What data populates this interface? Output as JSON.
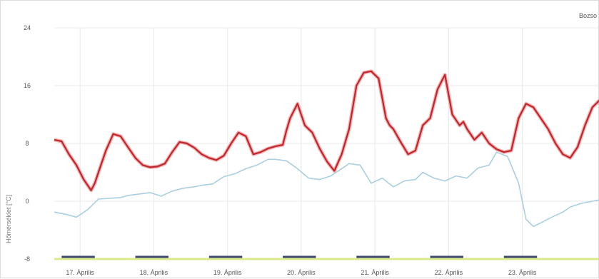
{
  "chart_data": {
    "type": "line",
    "title": "",
    "corner_label": "Bozso",
    "ylabel": "Hőmérséklet [°C]",
    "ylim": [
      -8,
      24
    ],
    "xlim": [
      0,
      7.4
    ],
    "yticks": [
      "24",
      "16",
      "8",
      "0",
      "-8"
    ],
    "ytick_values": [
      24,
      16,
      8,
      0,
      -8
    ],
    "categories": [
      "17. Április",
      "18. Április",
      "19. Április",
      "20. Április",
      "21. Április",
      "22. Április",
      "23. Április"
    ],
    "category_positions": [
      0.35,
      1.35,
      2.35,
      3.35,
      4.35,
      5.35,
      6.35
    ],
    "grid": true,
    "colors": {
      "red": "#c0272d",
      "red_band": "#f4a7a9",
      "blue": "#a9cfe0",
      "night": "#3c4b6e",
      "day": "#dbe98d"
    },
    "night_bars": [
      [
        0.1,
        0.55
      ],
      [
        1.1,
        1.55
      ],
      [
        2.1,
        2.55
      ],
      [
        3.1,
        3.55
      ],
      [
        4.1,
        4.55
      ],
      [
        5.1,
        5.55
      ],
      [
        6.1,
        6.55
      ]
    ],
    "series": [
      {
        "color": "#c0272d",
        "x": [
          0.0,
          0.1,
          0.2,
          0.3,
          0.4,
          0.5,
          0.55,
          0.6,
          0.7,
          0.8,
          0.9,
          1.0,
          1.1,
          1.2,
          1.3,
          1.4,
          1.5,
          1.6,
          1.7,
          1.8,
          1.9,
          2.0,
          2.1,
          2.2,
          2.3,
          2.4,
          2.5,
          2.6,
          2.7,
          2.8,
          2.9,
          3.0,
          3.1,
          3.15,
          3.2,
          3.3,
          3.4,
          3.5,
          3.6,
          3.7,
          3.8,
          3.9,
          4.0,
          4.1,
          4.2,
          4.3,
          4.4,
          4.5,
          4.55,
          4.6,
          4.7,
          4.8,
          4.9,
          5.0,
          5.1,
          5.2,
          5.3,
          5.4,
          5.5,
          5.55,
          5.6,
          5.7,
          5.8,
          5.9,
          6.0,
          6.1,
          6.2,
          6.3,
          6.4,
          6.5,
          6.6,
          6.7,
          6.8,
          6.9,
          7.0,
          7.1,
          7.2,
          7.3,
          7.4
        ],
        "values": [
          8.5,
          8.3,
          6.5,
          5.0,
          3.0,
          1.5,
          2.5,
          4.0,
          7.0,
          9.3,
          9.0,
          7.5,
          6.0,
          5.0,
          4.7,
          4.8,
          5.2,
          6.8,
          8.2,
          8.0,
          7.4,
          6.5,
          6.0,
          5.7,
          6.3,
          8.0,
          9.5,
          9.0,
          6.5,
          6.8,
          7.3,
          7.6,
          7.8,
          9.8,
          11.5,
          13.5,
          10.5,
          9.5,
          7.3,
          5.5,
          4.2,
          6.5,
          10.0,
          16.0,
          17.8,
          18.0,
          17.0,
          11.5,
          10.5,
          10.0,
          8.2,
          6.5,
          7.0,
          10.5,
          11.5,
          15.5,
          17.5,
          12.0,
          10.5,
          11.0,
          10.0,
          8.5,
          9.5,
          8.0,
          7.2,
          6.8,
          7.0,
          11.5,
          13.5,
          13.0,
          11.5,
          10.0,
          8.0,
          6.5,
          6.0,
          7.5,
          10.5,
          13.0,
          14.0
        ]
      },
      {
        "color": "#a9cfe0",
        "x": [
          0.0,
          0.15,
          0.3,
          0.45,
          0.6,
          0.75,
          0.9,
          1.0,
          1.15,
          1.3,
          1.45,
          1.6,
          1.75,
          1.9,
          2.0,
          2.15,
          2.3,
          2.45,
          2.6,
          2.75,
          2.9,
          3.0,
          3.15,
          3.3,
          3.45,
          3.6,
          3.75,
          3.9,
          4.0,
          4.15,
          4.3,
          4.45,
          4.6,
          4.75,
          4.9,
          5.0,
          5.15,
          5.3,
          5.45,
          5.6,
          5.75,
          5.9,
          6.0,
          6.15,
          6.3,
          6.4,
          6.5,
          6.6,
          6.75,
          6.9,
          7.0,
          7.15,
          7.3,
          7.4
        ],
        "values": [
          -1.5,
          -1.8,
          -2.2,
          -1.2,
          0.3,
          0.4,
          0.5,
          0.8,
          1.0,
          1.2,
          0.7,
          1.4,
          1.8,
          2.0,
          2.2,
          2.4,
          3.4,
          3.8,
          4.5,
          5.0,
          5.8,
          5.8,
          5.6,
          4.5,
          3.2,
          3.0,
          3.5,
          4.5,
          5.2,
          5.0,
          2.5,
          3.2,
          2.0,
          2.8,
          3.0,
          4.0,
          3.2,
          2.8,
          3.5,
          3.2,
          4.6,
          5.0,
          6.8,
          6.2,
          2.5,
          -2.5,
          -3.5,
          -3.0,
          -2.2,
          -1.5,
          -0.8,
          -0.3,
          0.0,
          0.2
        ]
      }
    ]
  }
}
